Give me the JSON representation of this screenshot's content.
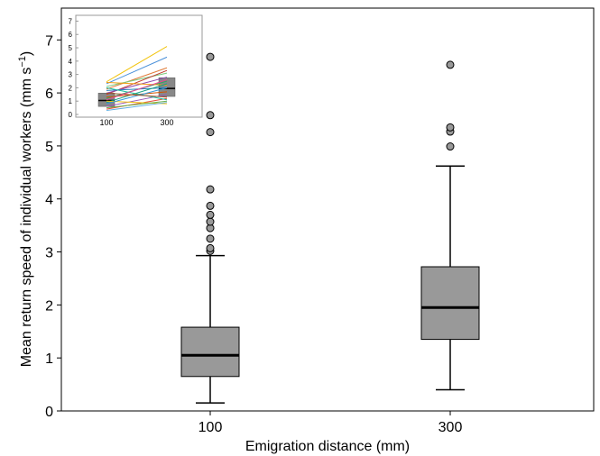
{
  "chart_data": [
    {
      "type": "box",
      "xlabel": "Emigration distance (mm)",
      "ylabel": "Mean return speed of individual workers (mm s",
      "ylabel_sup": "−1",
      "ylabel_close": ")",
      "ylim": [
        0,
        7.6
      ],
      "yticks": [
        0,
        1,
        2,
        3,
        4,
        5,
        6,
        7
      ],
      "categories": [
        "100",
        "300"
      ],
      "boxes": [
        {
          "category": "100",
          "whisker_low": 0.15,
          "q1": 0.65,
          "median": 1.05,
          "q3": 1.58,
          "whisker_high": 2.93,
          "outliers": [
            3.02,
            3.07,
            3.25,
            3.45,
            3.57,
            3.7,
            3.87,
            4.18,
            5.26,
            5.58,
            6.68
          ]
        },
        {
          "category": "300",
          "whisker_low": 0.4,
          "q1": 1.35,
          "median": 1.95,
          "q3": 2.72,
          "whisker_high": 4.62,
          "outliers": [
            4.99,
            5.27,
            5.35,
            6.53
          ]
        }
      ],
      "box_color": "#999999",
      "grid": false
    },
    {
      "type": "line",
      "role": "inset",
      "ylim": [
        0,
        7.3
      ],
      "yticks": [
        0,
        1,
        2,
        3,
        4,
        5,
        6,
        7
      ],
      "categories": [
        "100",
        "300"
      ],
      "boxes": [
        {
          "category": "100",
          "q1": 0.6,
          "median": 1.05,
          "q3": 1.6
        },
        {
          "category": "300",
          "q1": 1.35,
          "median": 1.95,
          "q3": 2.75
        }
      ],
      "series": [
        {
          "values": [
            2.45,
            5.1
          ],
          "color": "#f2c40f"
        },
        {
          "values": [
            2.3,
            4.3
          ],
          "color": "#4a90d9"
        },
        {
          "values": [
            1.9,
            3.5
          ],
          "color": "#e07b39"
        },
        {
          "values": [
            2.1,
            3.1
          ],
          "color": "#7fc97f"
        },
        {
          "values": [
            1.5,
            3.3
          ],
          "color": "#c0392b"
        },
        {
          "values": [
            1.6,
            2.8
          ],
          "color": "#8e44ad"
        },
        {
          "values": [
            1.2,
            2.5
          ],
          "color": "#27ae60"
        },
        {
          "values": [
            2.4,
            2.2
          ],
          "color": "#f39c12"
        },
        {
          "values": [
            1.8,
            2.0
          ],
          "color": "#2980b9"
        },
        {
          "values": [
            0.9,
            2.3
          ],
          "color": "#16a085"
        },
        {
          "values": [
            1.3,
            1.7
          ],
          "color": "#d35400"
        },
        {
          "values": [
            0.6,
            1.5
          ],
          "color": "#9b59b6"
        },
        {
          "values": [
            0.4,
            1.2
          ],
          "color": "#e74c3c"
        },
        {
          "values": [
            2.0,
            1.1
          ],
          "color": "#1abc9c"
        },
        {
          "values": [
            1.0,
            0.8
          ],
          "color": "#f1c40f"
        },
        {
          "values": [
            0.8,
            2.0
          ],
          "color": "#3498db"
        },
        {
          "values": [
            1.6,
            1.3
          ],
          "color": "#a0522d"
        },
        {
          "values": [
            0.5,
            1.0
          ],
          "color": "#6ab04c"
        },
        {
          "values": [
            1.1,
            2.6
          ],
          "color": "#e84393"
        },
        {
          "values": [
            0.3,
            0.9
          ],
          "color": "#5dade2"
        }
      ]
    }
  ]
}
